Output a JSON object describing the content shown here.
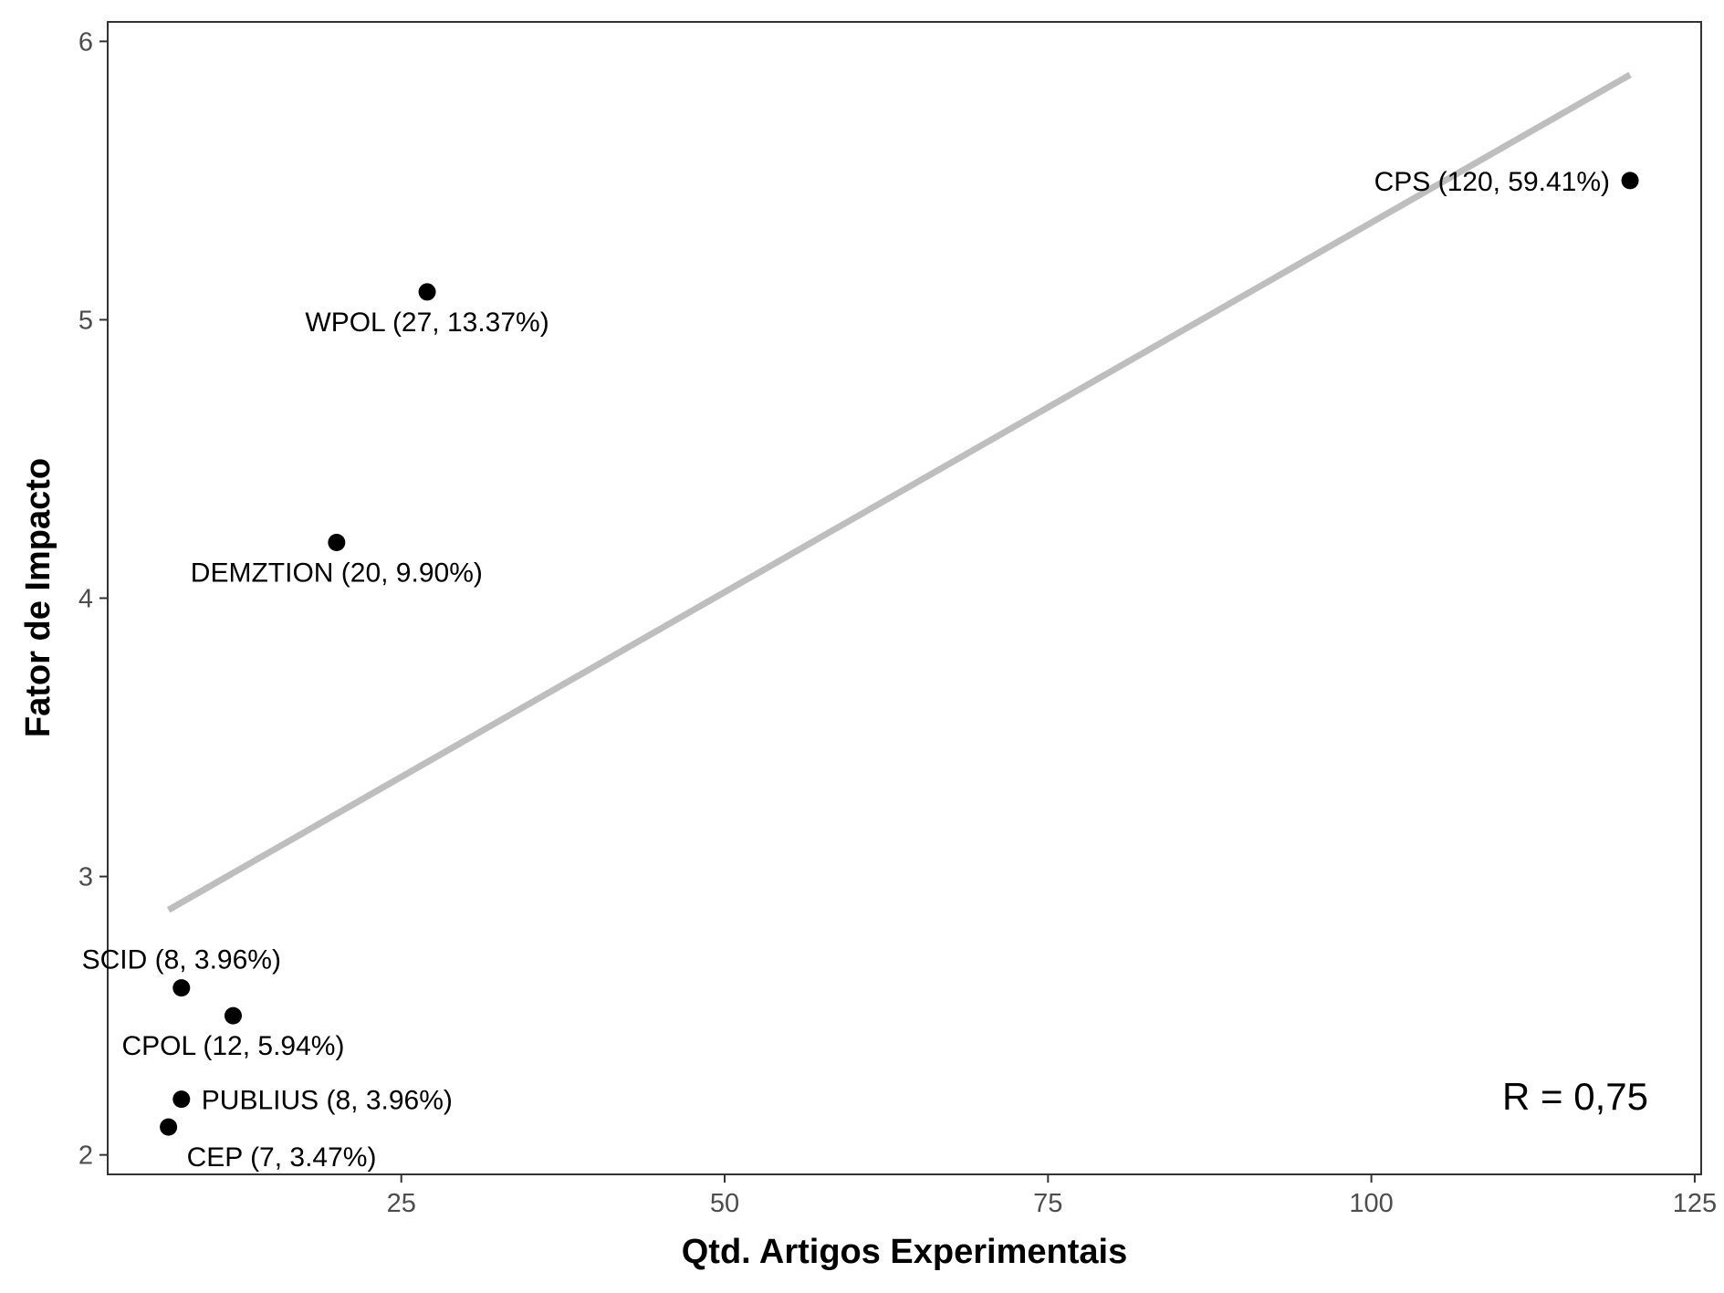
{
  "chart_data": {
    "type": "scatter",
    "xlabel": "Qtd. Artigos Experimentais",
    "ylabel": "Fator de Impacto",
    "xlim": [
      2.3,
      125.5
    ],
    "ylim": [
      1.93,
      6.07
    ],
    "x_ticks": [
      25,
      50,
      75,
      100,
      125
    ],
    "y_ticks": [
      2,
      3,
      4,
      5,
      6
    ],
    "x_tick_labels": [
      "25",
      "50",
      "75",
      "100",
      "125"
    ],
    "y_tick_labels": [
      "2",
      "3",
      "4",
      "5",
      "6"
    ],
    "grid": false,
    "points": [
      {
        "x": 120,
        "y": 5.5,
        "label": "CPS (120, 59.41%)",
        "label_pos": "left"
      },
      {
        "x": 27,
        "y": 5.1,
        "label": "WPOL (27, 13.37%)",
        "label_pos": "below"
      },
      {
        "x": 20,
        "y": 4.2,
        "label": "DEMZTION (20, 9.90%)",
        "label_pos": "below"
      },
      {
        "x": 8,
        "y": 2.6,
        "label": "SCID (8, 3.96%)",
        "label_pos": "above"
      },
      {
        "x": 12,
        "y": 2.5,
        "label": "CPOL (12, 5.94%)",
        "label_pos": "below"
      },
      {
        "x": 8,
        "y": 2.2,
        "label": "PUBLIUS (8, 3.96%)",
        "label_pos": "right"
      },
      {
        "x": 7,
        "y": 2.1,
        "label": "CEP (7, 3.47%)",
        "label_pos": "below-right"
      }
    ],
    "trend_line": {
      "x": [
        7,
        120
      ],
      "y": [
        2.88,
        5.88
      ],
      "color": "#bebebe"
    },
    "annotation": "R = 0,75",
    "point_color": "#000000"
  }
}
